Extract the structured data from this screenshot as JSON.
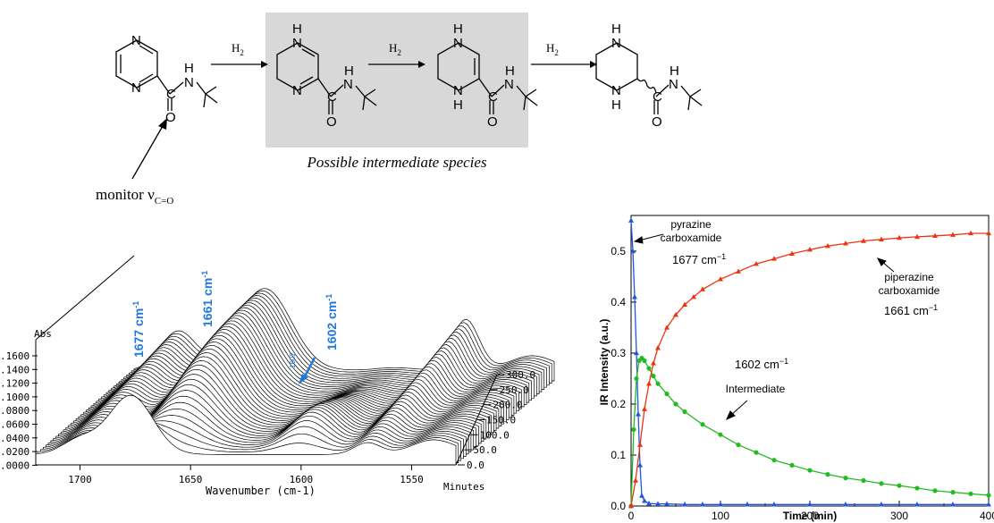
{
  "scheme": {
    "arrow_labels": [
      "H",
      "H",
      "H"
    ],
    "arrow_label_sub": "2",
    "atom_N": "N",
    "atom_H": "H",
    "atom_C": "C",
    "atom_O": "O",
    "intermediate_caption": "Possible intermediate species",
    "monitor_text": "monitor ν",
    "monitor_sub": "C=O"
  },
  "waterfall": {
    "abs_label": "Abs",
    "z_ticks": [
      ".1600",
      ".1400",
      ".1200",
      ".1000",
      ".0800",
      ".0600",
      ".0400",
      ".0200",
      ".0000"
    ],
    "x_ticks": [
      {
        "label": "1700",
        "value": 1700
      },
      {
        "label": "1650",
        "value": 1650
      },
      {
        "label": "1600",
        "value": 1600
      },
      {
        "label": "1550",
        "value": 1550
      }
    ],
    "xlabel": "Wavenumber (cm-1)",
    "t_ticks": [
      "0.0",
      "50.0",
      "100.0",
      "150.0",
      "200.0",
      "250.0",
      "300.0"
    ],
    "t_label": "Minutes",
    "peak_labels": [
      "1677 cm",
      "1661 cm",
      "1602 cm"
    ],
    "sup": "-1",
    "small_label": "1602",
    "accent": "#2277dd"
  },
  "chart_data": {
    "type": "scatter",
    "title": "",
    "xlabel": "Time (min)",
    "ylabel": "IR  Intensity  (a.u.)",
    "xlim": [
      0,
      400
    ],
    "ylim": [
      0,
      0.55
    ],
    "x_ticks": [
      "0",
      "100",
      "200",
      "300",
      "400"
    ],
    "y_ticks": [
      "0.0",
      "0.1",
      "0.2",
      "0.3",
      "0.4",
      "0.5"
    ],
    "annotations": [
      {
        "lines": [
          "pyrazine",
          "carboxamide"
        ],
        "wavenumber": "1677 cm",
        "sup": "−1"
      },
      {
        "lines": [
          "piperazine",
          "carboxamide"
        ],
        "wavenumber": "1661 cm",
        "sup": "−1"
      },
      {
        "lines": [
          "Intermediate"
        ],
        "wavenumber": "1602 cm",
        "sup": "−1"
      }
    ],
    "series": [
      {
        "color": "#2255dd",
        "marker": "triangle",
        "x": [
          0,
          2,
          4,
          6,
          8,
          10,
          12,
          15,
          20,
          30,
          40,
          60,
          80,
          100,
          130,
          160,
          200,
          240,
          280,
          320,
          360,
          400
        ],
        "y": [
          0.56,
          0.5,
          0.41,
          0.3,
          0.18,
          0.08,
          0.02,
          0.01,
          0.005,
          0.004,
          0.004,
          0.003,
          0.003,
          0.003,
          0.003,
          0.003,
          0.003,
          0.003,
          0.003,
          0.003,
          0.003,
          0.003
        ]
      },
      {
        "color": "#22bb22",
        "marker": "circle",
        "x": [
          0,
          3,
          6,
          9,
          12,
          15,
          20,
          25,
          30,
          40,
          50,
          60,
          80,
          100,
          120,
          140,
          160,
          180,
          200,
          220,
          240,
          260,
          280,
          300,
          320,
          340,
          360,
          380,
          400
        ],
        "y": [
          0.0,
          0.15,
          0.25,
          0.285,
          0.29,
          0.285,
          0.27,
          0.255,
          0.24,
          0.22,
          0.2,
          0.185,
          0.16,
          0.14,
          0.12,
          0.105,
          0.09,
          0.08,
          0.07,
          0.062,
          0.055,
          0.05,
          0.044,
          0.04,
          0.035,
          0.03,
          0.027,
          0.024,
          0.021
        ]
      },
      {
        "color": "#ee3311",
        "marker": "triangle",
        "x": [
          0,
          5,
          10,
          15,
          20,
          25,
          30,
          40,
          50,
          60,
          70,
          80,
          100,
          120,
          140,
          160,
          180,
          200,
          220,
          240,
          260,
          280,
          300,
          320,
          340,
          360,
          380,
          400
        ],
        "y": [
          0.0,
          0.05,
          0.12,
          0.19,
          0.24,
          0.28,
          0.31,
          0.35,
          0.375,
          0.395,
          0.41,
          0.425,
          0.445,
          0.46,
          0.475,
          0.485,
          0.495,
          0.503,
          0.51,
          0.515,
          0.52,
          0.523,
          0.526,
          0.528,
          0.53,
          0.532,
          0.535,
          0.535
        ]
      }
    ]
  }
}
